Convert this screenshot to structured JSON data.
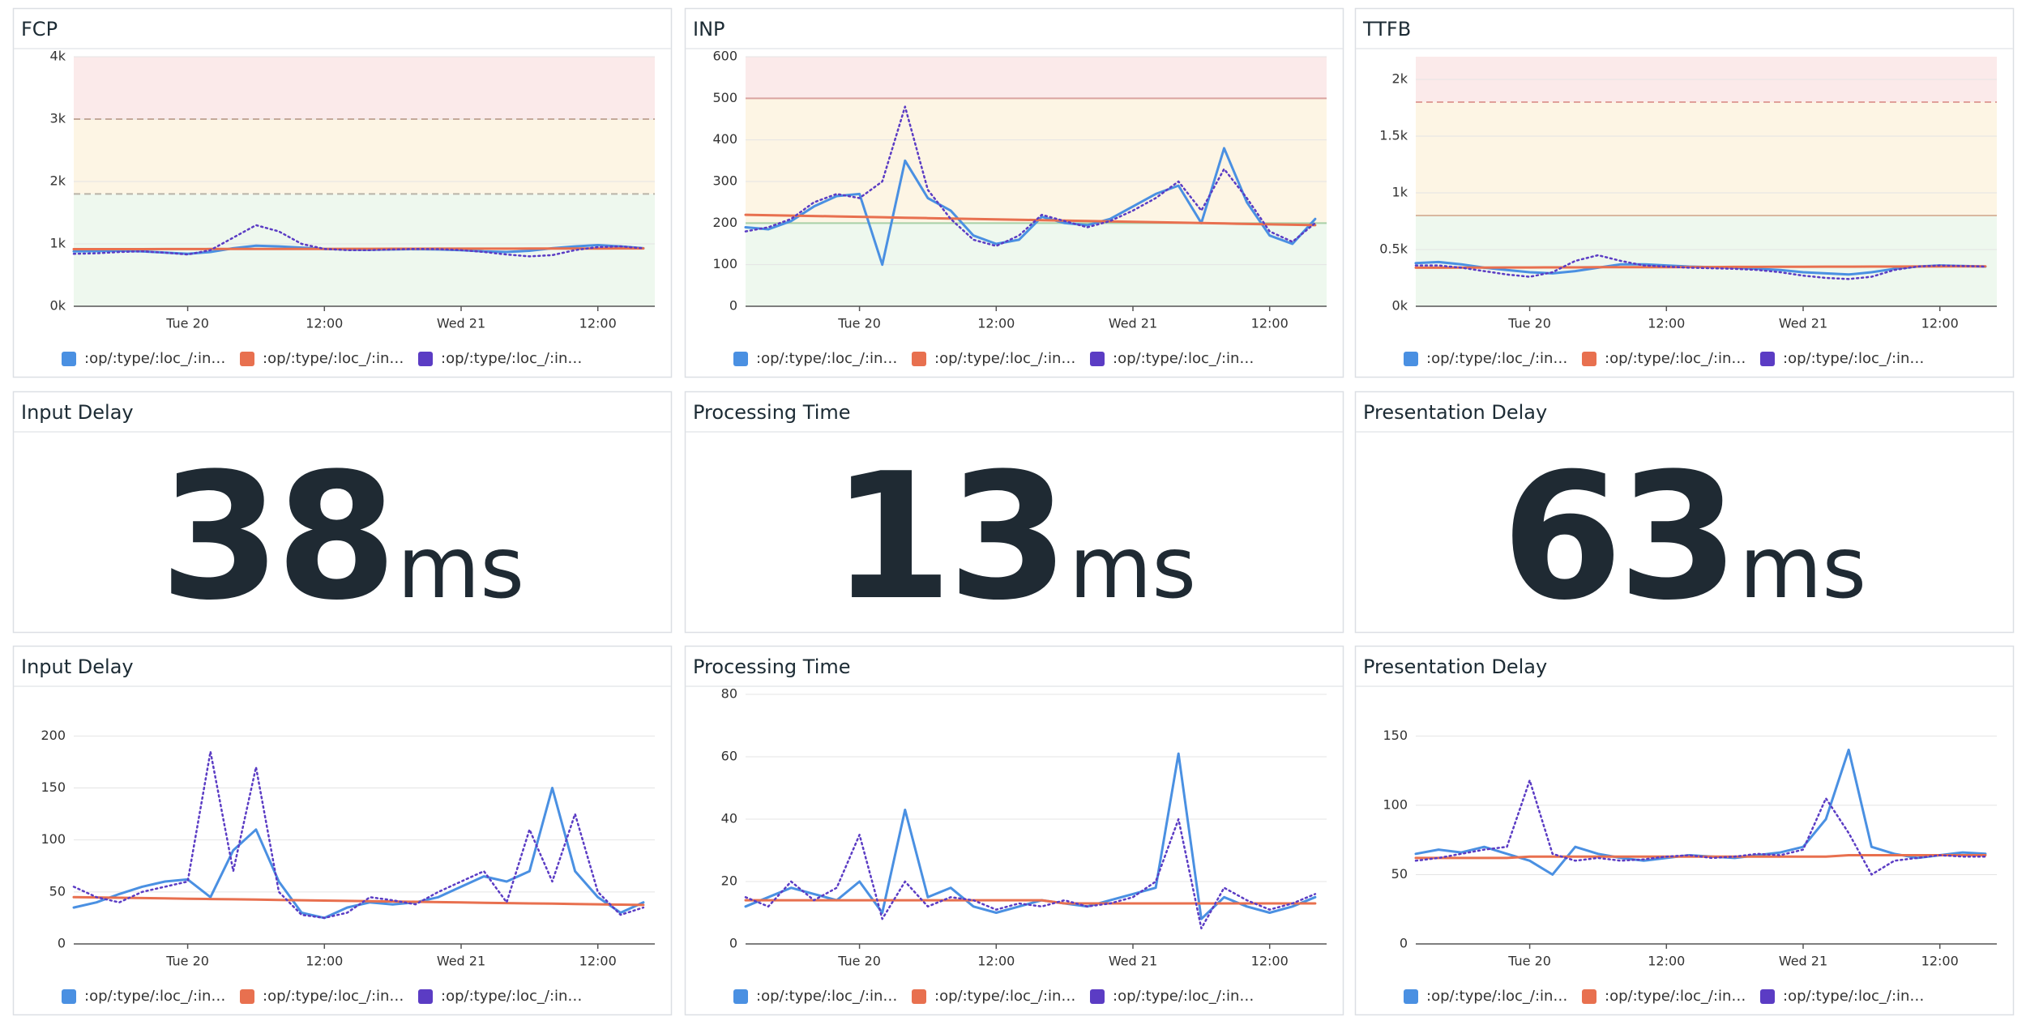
{
  "chart_data": [
    {
      "type": "line",
      "title": "FCP",
      "x": [
        -10,
        -8,
        -6,
        -4,
        -2,
        0,
        2,
        4,
        6,
        8,
        10,
        12,
        14,
        16,
        18,
        20,
        22,
        24,
        26,
        28,
        30,
        32,
        34,
        36,
        38,
        40
      ],
      "xlim": [
        -10,
        41
      ],
      "xticks": [
        {
          "value": 0,
          "label": "Tue 20"
        },
        {
          "value": 12,
          "label": "12:00"
        },
        {
          "value": 24,
          "label": "Wed 21"
        },
        {
          "value": 36,
          "label": "12:00"
        }
      ],
      "ylim": [
        0,
        4000
      ],
      "yticks": [
        {
          "value": 0,
          "label": "0k"
        },
        {
          "value": 1000,
          "label": "1k"
        },
        {
          "value": 2000,
          "label": "2k"
        },
        {
          "value": 3000,
          "label": "3k"
        },
        {
          "value": 4000,
          "label": "4k"
        }
      ],
      "grid": true,
      "bands": [
        {
          "from": 0,
          "to": 1800,
          "color": "#eef8ee"
        },
        {
          "from": 1800,
          "to": 3000,
          "color": "#fdf5e4"
        },
        {
          "from": 3000,
          "to": 4000,
          "color": "#fbeaea"
        }
      ],
      "thresholds": [
        {
          "value": 1800,
          "color": "#b9b3a8",
          "dashed": true
        },
        {
          "value": 3000,
          "color": "#c4a99a",
          "dashed": true
        }
      ],
      "series": [
        {
          "name": ":op/:type/:loc_/:in…",
          "color": "#4a90e2",
          "style": "solid",
          "values": [
            880,
            885,
            890,
            880,
            860,
            840,
            870,
            930,
            970,
            960,
            940,
            920,
            910,
            905,
            910,
            915,
            910,
            900,
            880,
            870,
            890,
            930,
            960,
            980,
            960,
            930
          ]
        },
        {
          "name": ":op/:type/:loc_/:in…",
          "color": "#e8704f",
          "style": "solid",
          "values": [
            915,
            915,
            916,
            916,
            917,
            917,
            918,
            918,
            919,
            919,
            920,
            920,
            921,
            921,
            922,
            922,
            923,
            923,
            924,
            924,
            925,
            925,
            926,
            926,
            927,
            927
          ]
        },
        {
          "name": ":op/:type/:loc_/:in…",
          "color": "#5b3cc4",
          "style": "dotted",
          "values": [
            840,
            850,
            870,
            880,
            860,
            830,
            900,
            1100,
            1300,
            1200,
            1000,
            920,
            900,
            900,
            910,
            920,
            915,
            900,
            870,
            830,
            800,
            820,
            900,
            950,
            960,
            930
          ]
        }
      ]
    },
    {
      "type": "line",
      "title": "INP",
      "x": [
        -10,
        -8,
        -6,
        -4,
        -2,
        0,
        2,
        4,
        6,
        8,
        10,
        12,
        14,
        16,
        18,
        20,
        22,
        24,
        26,
        28,
        30,
        32,
        34,
        36,
        38,
        40
      ],
      "xlim": [
        -10,
        41
      ],
      "xticks": [
        {
          "value": 0,
          "label": "Tue 20"
        },
        {
          "value": 12,
          "label": "12:00"
        },
        {
          "value": 24,
          "label": "Wed 21"
        },
        {
          "value": 36,
          "label": "12:00"
        }
      ],
      "ylim": [
        0,
        600
      ],
      "yticks": [
        0,
        100,
        200,
        300,
        400,
        500,
        600
      ],
      "grid": true,
      "bands": [
        {
          "from": 0,
          "to": 200,
          "color": "#eef8ee"
        },
        {
          "from": 200,
          "to": 500,
          "color": "#fdf5e4"
        },
        {
          "from": 500,
          "to": 600,
          "color": "#fbeaea"
        }
      ],
      "thresholds": [
        {
          "value": 200,
          "color": "#a8d0a8",
          "dashed": false
        },
        {
          "value": 500,
          "color": "#d9a3a0",
          "dashed": false
        }
      ],
      "series": [
        {
          "name": ":op/:type/:loc_/:in…",
          "color": "#4a90e2",
          "style": "solid",
          "values": [
            190,
            185,
            205,
            240,
            265,
            270,
            100,
            350,
            260,
            230,
            170,
            150,
            160,
            215,
            200,
            195,
            210,
            240,
            270,
            290,
            200,
            380,
            250,
            170,
            150,
            210
          ]
        },
        {
          "name": ":op/:type/:loc_/:in…",
          "color": "#e8704f",
          "style": "solid",
          "values": [
            220,
            219,
            218,
            217,
            216,
            215,
            214,
            213,
            212,
            211,
            210,
            209,
            208,
            207,
            206,
            205,
            204,
            203,
            202,
            201,
            200,
            199,
            198,
            197,
            196,
            195
          ]
        },
        {
          "name": ":op/:type/:loc_/:in…",
          "color": "#5b3cc4",
          "style": "dotted",
          "values": [
            180,
            190,
            210,
            250,
            270,
            260,
            300,
            480,
            280,
            210,
            160,
            145,
            170,
            220,
            205,
            190,
            205,
            230,
            260,
            300,
            230,
            330,
            260,
            180,
            155,
            200
          ]
        }
      ]
    },
    {
      "type": "line",
      "title": "TTFB",
      "x": [
        -10,
        -8,
        -6,
        -4,
        -2,
        0,
        2,
        4,
        6,
        8,
        10,
        12,
        14,
        16,
        18,
        20,
        22,
        24,
        26,
        28,
        30,
        32,
        34,
        36,
        38,
        40
      ],
      "xlim": [
        -10,
        41
      ],
      "xticks": [
        {
          "value": 0,
          "label": "Tue 20"
        },
        {
          "value": 12,
          "label": "12:00"
        },
        {
          "value": 24,
          "label": "Wed 21"
        },
        {
          "value": 36,
          "label": "12:00"
        }
      ],
      "ylim": [
        0,
        2200
      ],
      "yticks": [
        {
          "value": 0,
          "label": "0k"
        },
        {
          "value": 500,
          "label": "0.5k"
        },
        {
          "value": 1000,
          "label": "1k"
        },
        {
          "value": 1500,
          "label": "1.5k"
        },
        {
          "value": 2000,
          "label": "2k"
        }
      ],
      "grid": true,
      "bands": [
        {
          "from": 0,
          "to": 800,
          "color": "#eef8ee"
        },
        {
          "from": 800,
          "to": 1800,
          "color": "#fdf5e4"
        },
        {
          "from": 1800,
          "to": 2200,
          "color": "#fbeaea"
        }
      ],
      "thresholds": [
        {
          "value": 800,
          "color": "#d9b8a0",
          "dashed": false
        },
        {
          "value": 1800,
          "color": "#e0a09a",
          "dashed": true
        }
      ],
      "series": [
        {
          "name": ":op/:type/:loc_/:in…",
          "color": "#4a90e2",
          "style": "solid",
          "values": [
            380,
            390,
            370,
            340,
            320,
            300,
            290,
            310,
            340,
            370,
            370,
            360,
            350,
            345,
            340,
            330,
            320,
            300,
            290,
            280,
            300,
            330,
            350,
            360,
            355,
            350
          ]
        },
        {
          "name": ":op/:type/:loc_/:in…",
          "color": "#e8704f",
          "style": "solid",
          "values": [
            340,
            340,
            341,
            341,
            342,
            342,
            343,
            343,
            344,
            344,
            345,
            345,
            346,
            346,
            347,
            347,
            348,
            348,
            349,
            349,
            350,
            350,
            351,
            351,
            352,
            352
          ]
        },
        {
          "name": ":op/:type/:loc_/:in…",
          "color": "#5b3cc4",
          "style": "dotted",
          "values": [
            360,
            360,
            340,
            310,
            280,
            260,
            300,
            400,
            450,
            400,
            360,
            350,
            340,
            335,
            330,
            320,
            300,
            270,
            250,
            240,
            260,
            320,
            350,
            360,
            355,
            350
          ]
        }
      ]
    },
    {
      "type": "line",
      "title": "Input Delay",
      "x": [
        -10,
        -8,
        -6,
        -4,
        -2,
        0,
        2,
        4,
        6,
        8,
        10,
        12,
        14,
        16,
        18,
        20,
        22,
        24,
        26,
        28,
        30,
        32,
        34,
        36,
        38,
        40
      ],
      "xlim": [
        -10,
        41
      ],
      "xticks": [
        {
          "value": 0,
          "label": "Tue 20"
        },
        {
          "value": 12,
          "label": "12:00"
        },
        {
          "value": 24,
          "label": "Wed 21"
        },
        {
          "value": 36,
          "label": "12:00"
        }
      ],
      "ylim": [
        0,
        240
      ],
      "yticks": [
        0,
        50,
        100,
        150,
        200
      ],
      "grid": true,
      "series": [
        {
          "name": ":op/:type/:loc_/:in…",
          "color": "#4a90e2",
          "style": "solid",
          "values": [
            35,
            40,
            48,
            55,
            60,
            62,
            45,
            90,
            110,
            60,
            30,
            25,
            35,
            40,
            38,
            40,
            45,
            55,
            65,
            60,
            70,
            150,
            70,
            45,
            30,
            40
          ]
        },
        {
          "name": ":op/:type/:loc_/:in…",
          "color": "#e8704f",
          "style": "solid",
          "values": [
            45,
            44.7,
            44.4,
            44.1,
            43.8,
            43.5,
            43.2,
            42.9,
            42.6,
            42.3,
            42,
            41.7,
            41.4,
            41.1,
            40.8,
            40.5,
            40.2,
            39.9,
            39.6,
            39.3,
            39,
            38.7,
            38.4,
            38.1,
            37.8,
            37.5
          ]
        },
        {
          "name": ":op/:type/:loc_/:in…",
          "color": "#5b3cc4",
          "style": "dotted",
          "values": [
            55,
            45,
            40,
            50,
            55,
            60,
            185,
            70,
            170,
            50,
            28,
            25,
            30,
            45,
            42,
            38,
            50,
            60,
            70,
            40,
            110,
            60,
            125,
            50,
            28,
            35
          ]
        }
      ]
    },
    {
      "type": "line",
      "title": "Processing Time",
      "x": [
        -10,
        -8,
        -6,
        -4,
        -2,
        0,
        2,
        4,
        6,
        8,
        10,
        12,
        14,
        16,
        18,
        20,
        22,
        24,
        26,
        28,
        30,
        32,
        34,
        36,
        38,
        40
      ],
      "xlim": [
        -10,
        41
      ],
      "xticks": [
        {
          "value": 0,
          "label": "Tue 20"
        },
        {
          "value": 12,
          "label": "12:00"
        },
        {
          "value": 24,
          "label": "Wed 21"
        },
        {
          "value": 36,
          "label": "12:00"
        }
      ],
      "ylim": [
        0,
        80
      ],
      "yticks": [
        0,
        20,
        40,
        60,
        80
      ],
      "grid": true,
      "series": [
        {
          "name": ":op/:type/:loc_/:in…",
          "color": "#4a90e2",
          "style": "solid",
          "values": [
            12,
            15,
            18,
            16,
            14,
            20,
            10,
            43,
            15,
            18,
            12,
            10,
            12,
            14,
            13,
            12,
            14,
            16,
            18,
            61,
            8,
            15,
            12,
            10,
            12,
            15
          ]
        },
        {
          "name": ":op/:type/:loc_/:in…",
          "color": "#e8704f",
          "style": "solid",
          "values": [
            14,
            14,
            14,
            14,
            14,
            14,
            14,
            14,
            14,
            14,
            14,
            14,
            14,
            14,
            13,
            13,
            13,
            13,
            13,
            13,
            13,
            13,
            13,
            13,
            13,
            13
          ]
        },
        {
          "name": ":op/:type/:loc_/:in…",
          "color": "#5b3cc4",
          "style": "dotted",
          "values": [
            15,
            12,
            20,
            14,
            18,
            35,
            8,
            20,
            12,
            15,
            14,
            11,
            13,
            12,
            14,
            12,
            13,
            15,
            20,
            40,
            5,
            18,
            14,
            11,
            13,
            16
          ]
        }
      ]
    },
    {
      "type": "line",
      "title": "Presentation Delay",
      "x": [
        -10,
        -8,
        -6,
        -4,
        -2,
        0,
        2,
        4,
        6,
        8,
        10,
        12,
        14,
        16,
        18,
        20,
        22,
        24,
        26,
        28,
        30,
        32,
        34,
        36,
        38,
        40
      ],
      "xlim": [
        -10,
        41
      ],
      "xticks": [
        {
          "value": 0,
          "label": "Tue 20"
        },
        {
          "value": 12,
          "label": "12:00"
        },
        {
          "value": 24,
          "label": "Wed 21"
        },
        {
          "value": 36,
          "label": "12:00"
        }
      ],
      "ylim": [
        0,
        180
      ],
      "yticks": [
        0,
        50,
        100,
        150
      ],
      "grid": true,
      "series": [
        {
          "name": ":op/:type/:loc_/:in…",
          "color": "#4a90e2",
          "style": "solid",
          "values": [
            65,
            68,
            66,
            70,
            65,
            60,
            50,
            70,
            65,
            62,
            60,
            62,
            64,
            63,
            62,
            64,
            66,
            70,
            90,
            140,
            70,
            65,
            62,
            64,
            66,
            65
          ]
        },
        {
          "name": ":op/:type/:loc_/:in…",
          "color": "#e8704f",
          "style": "solid",
          "values": [
            62,
            62,
            62,
            62,
            62,
            63,
            63,
            63,
            63,
            63,
            63,
            63,
            63,
            63,
            63,
            63,
            63,
            63,
            63,
            64,
            64,
            64,
            64,
            64,
            64,
            64
          ]
        },
        {
          "name": ":op/:type/:loc_/:in…",
          "color": "#5b3cc4",
          "style": "dotted",
          "values": [
            60,
            62,
            65,
            68,
            70,
            118,
            65,
            60,
            62,
            60,
            61,
            63,
            64,
            62,
            63,
            65,
            64,
            68,
            105,
            80,
            50,
            60,
            62,
            64,
            63,
            63
          ]
        }
      ]
    }
  ],
  "stats": [
    {
      "title": "Input Delay",
      "value": 38,
      "unit": "ms"
    },
    {
      "title": "Processing Time",
      "value": 13,
      "unit": "ms"
    },
    {
      "title": "Presentation Delay",
      "value": 63,
      "unit": "ms"
    }
  ]
}
